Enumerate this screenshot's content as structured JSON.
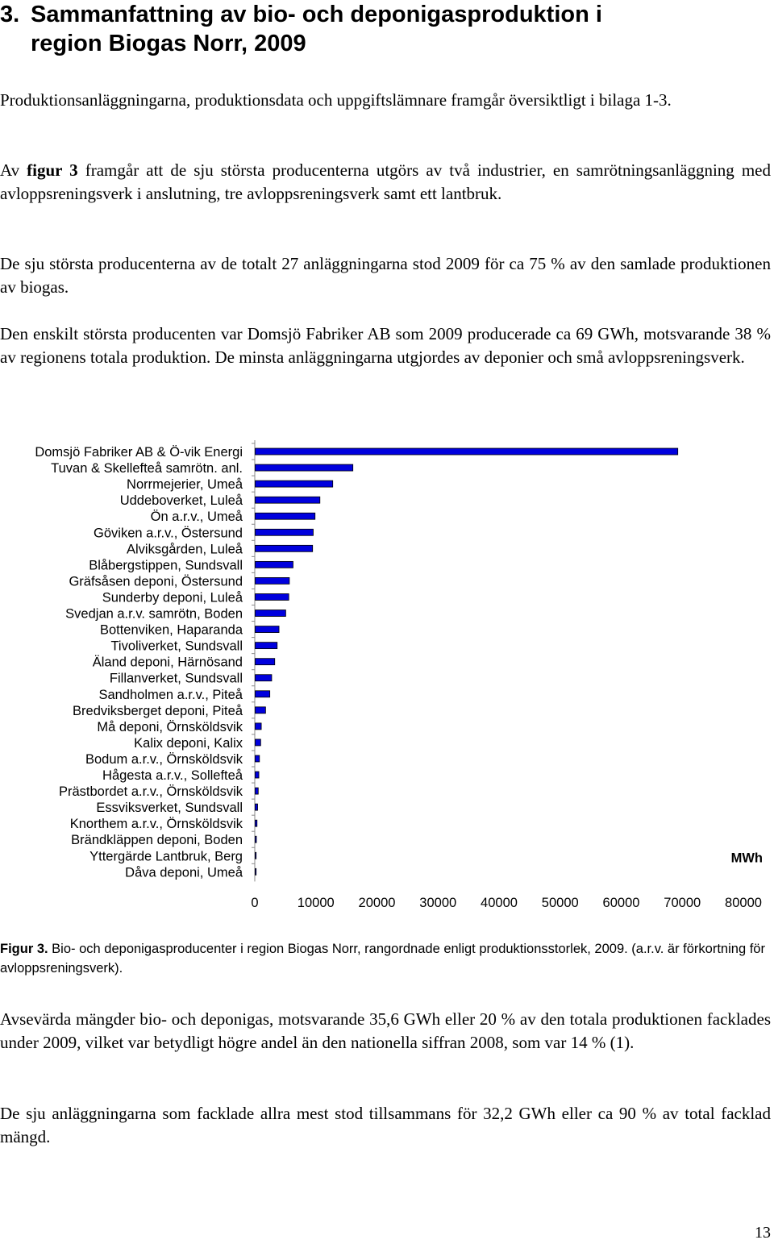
{
  "section": {
    "number": "3.",
    "title_line1": "Sammanfattning av bio- och deponigasproduktion i",
    "title_line2": "region Biogas Norr, 2009"
  },
  "paragraphs": {
    "p1": "Produktionsanläggningarna, produktionsdata och uppgiftslämnare framgår översiktligt i bilaga 1-3.",
    "p2_pre": "Av ",
    "p2_ref": "figur 3",
    "p2_post": " framgår att de sju största producenterna utgörs av två industrier, en samrötningsanläggning med avloppsreningsverk i anslutning, tre avloppsreningsverk samt ett lantbruk.",
    "p3": "De sju största producenterna av de totalt 27 anläggningarna stod 2009 för ca 75 % av den samlade produktionen av biogas.",
    "p4": "Den enskilt största producenten var Domsjö Fabriker AB som 2009 producerade ca 69 GWh, motsvarande 38 % av regionens totala produktion. De minsta anläggningarna utgjordes av deponier och små avloppsreningsverk.",
    "p5": "Avsevärda mängder bio- och deponigas, motsvarande 35,6 GWh eller 20 % av den totala produktionen facklades under 2009, vilket var betydligt högre andel än den nationella siffran 2008, som var 14 % (1).",
    "p6": "De sju anläggningarna som facklade allra mest stod tillsammans för 32,2 GWh eller ca 90 % av total facklad mängd."
  },
  "figure": {
    "label": "Figur 3.",
    "text": " Bio- och deponigasproducenter i region Biogas Norr, rangordnade enligt produktionsstorlek, 2009. (a.r.v. är förkortning för avloppsreningsverk)."
  },
  "chart_data": {
    "type": "bar",
    "orientation": "horizontal",
    "unit_label": "MWh",
    "xlim": [
      0,
      80000
    ],
    "xticks": [
      "0",
      "10000",
      "20000",
      "30000",
      "40000",
      "50000",
      "60000",
      "70000",
      "80000"
    ],
    "categories": [
      "Domsjö Fabriker AB & Ö-vik Energi",
      "Tuvan & Skellefteå samrötn. anl.",
      "Norrmejerier, Umeå",
      "Uddeboverket, Luleå",
      "Ön a.r.v., Umeå",
      "Göviken a.r.v., Östersund",
      "Alviksgården, Luleå",
      "Blåbergstippen, Sundsvall",
      "Gräfsåsen deponi, Östersund",
      "Sunderby deponi, Luleå",
      "Svedjan a.r.v. samrötn, Boden",
      "Bottenviken, Haparanda",
      "Tivoliverket, Sundsvall",
      "Äland deponi, Härnösand",
      "Fillanverket, Sundsvall",
      "Sandholmen a.r.v., Piteå",
      "Bredviksberget deponi, Piteå",
      "Må deponi, Örnsköldsvik",
      "Kalix deponi, Kalix",
      "Bodum a.r.v., Örnsköldsvik",
      "Hågesta a.r.v., Sollefteå",
      "Prästbordet a.r.v., Örnsköldsvik",
      "Essviksverket, Sundsvall",
      "Knorthem a.r.v., Örnsköldsvik",
      "Brändkläppen deponi, Boden",
      "Yttergärde Lantbruk, Berg",
      "Dåva deponi, Umeå"
    ],
    "values": [
      69200,
      16000,
      12700,
      10600,
      9800,
      9500,
      9400,
      6200,
      5600,
      5500,
      5000,
      3900,
      3600,
      3200,
      2700,
      2400,
      1700,
      1000,
      900,
      700,
      600,
      500,
      400,
      300,
      200,
      150,
      100
    ],
    "colors": {
      "bar_fill": "#0000dd",
      "bar_stroke": "#000000",
      "axis": "#888888"
    }
  },
  "page_number": "13"
}
